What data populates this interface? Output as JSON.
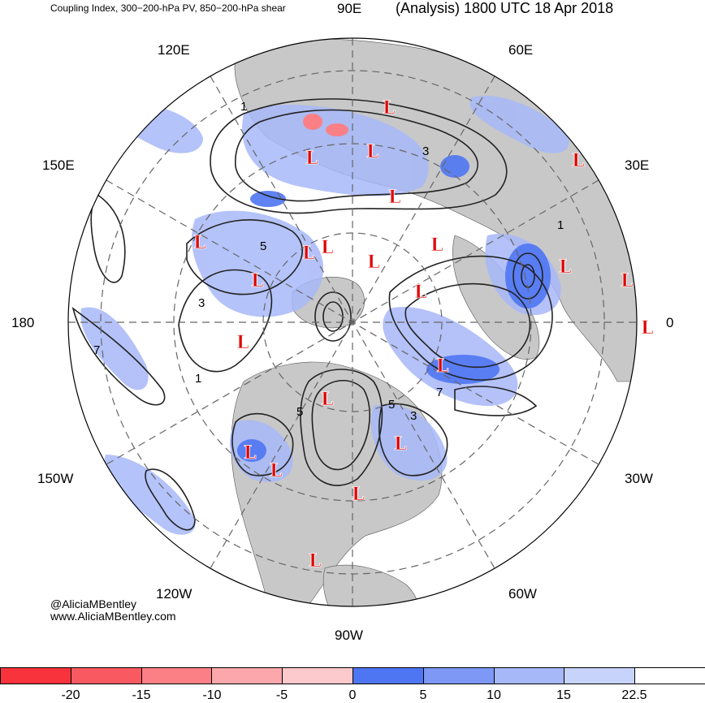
{
  "header": {
    "product": "Coupling Index, 300−200-hPa PV, 850−200-hPa shear",
    "valid_time": "(Analysis) 1800 UTC 18 Apr 2018"
  },
  "longitude_labels": [
    "90E",
    "60E",
    "30E",
    "0",
    "30W",
    "60W",
    "90W",
    "120W",
    "150W",
    "180",
    "150E",
    "120E"
  ],
  "contour_labels": [
    "1",
    "3",
    "5",
    "7",
    "1",
    "3",
    "5",
    "1",
    "3",
    "5",
    "7"
  ],
  "low_marker": "L",
  "credits": {
    "handle": "@AliciaMBentley",
    "site": "www.AliciaMBentley.com"
  },
  "colorbar": {
    "ticks": [
      "-20",
      "-15",
      "-10",
      "-5",
      "0",
      "5",
      "10",
      "15",
      "22.5"
    ],
    "colors": [
      "#f8333c",
      "#f95a61",
      "#fa8086",
      "#fba7ab",
      "#fcc9cc",
      "#4f76f2",
      "#7d98f5",
      "#a7b8f8",
      "#c7d3fa",
      "#ffffff"
    ]
  },
  "colors": {
    "land": "#c8c8c8",
    "ocean": "#ffffff",
    "low": "#e00000",
    "contour": "#222222",
    "grid": "#666666"
  }
}
